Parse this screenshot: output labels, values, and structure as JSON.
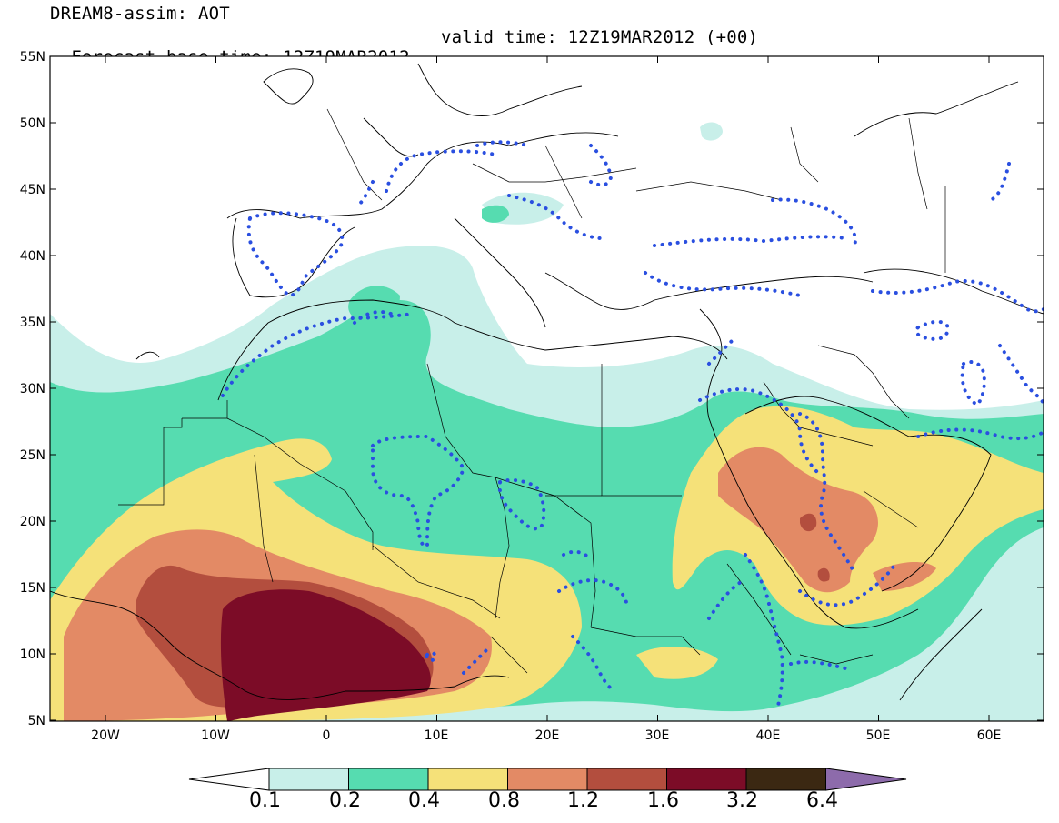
{
  "title": {
    "line1": "DREAM8-assim: AOT",
    "base_time": "Forecast base time: 12Z19MAR2012",
    "valid_time": "valid time: 12Z19MAR2012 (+00)"
  },
  "axes": {
    "lat_labels": [
      "55N",
      "50N",
      "45N",
      "40N",
      "35N",
      "30N",
      "25N",
      "20N",
      "15N",
      "10N",
      "5N"
    ],
    "lon_labels": [
      "20W",
      "10W",
      "0",
      "10E",
      "20E",
      "30E",
      "40E",
      "50E",
      "60E"
    ]
  },
  "colorbar": {
    "levels": [
      "0.1",
      "0.2",
      "0.4",
      "0.8",
      "1.2",
      "1.6",
      "3.2",
      "6.4"
    ],
    "colors": [
      "#ffffff",
      "#c8efe9",
      "#56dcb0",
      "#f5e179",
      "#e38a65",
      "#b34e3e",
      "#7c0c27",
      "#3b2812",
      "#8d6bab"
    ]
  },
  "fill_colors": {
    "c01": "#c8efe9",
    "c02": "#56dcb0",
    "c04": "#f5e179",
    "c08": "#e38a65",
    "c12": "#b34e3e",
    "c16": "#7c0c27",
    "dots": "#2a4fe0"
  }
}
